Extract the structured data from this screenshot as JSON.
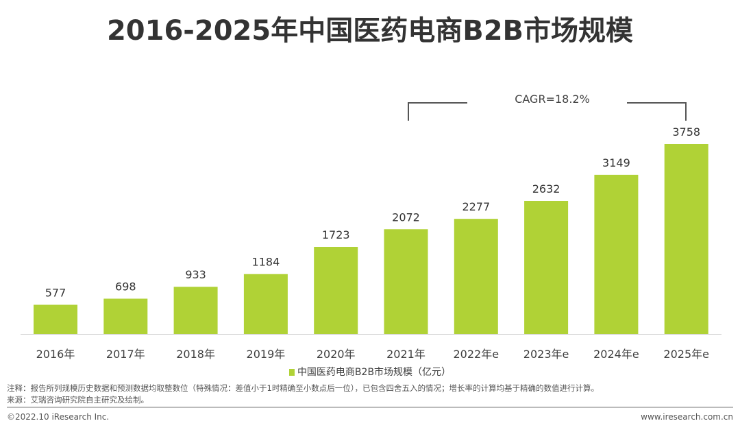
{
  "chart_data": {
    "type": "bar",
    "title": "2016-2025年中国医药电商B2B市场规模",
    "categories": [
      "2016年",
      "2017年",
      "2018年",
      "2019年",
      "2020年",
      "2021年",
      "2022年e",
      "2023年e",
      "2024年e",
      "2025年e"
    ],
    "series": [
      {
        "name": "中国医药电商B2B市场规模（亿元）",
        "values": [
          577,
          698,
          933,
          1184,
          1723,
          2072,
          2277,
          2632,
          3149,
          3758
        ]
      }
    ],
    "ylim": [
      0,
      3758
    ],
    "grid": false,
    "legend": "bottom",
    "color": "#b0d236",
    "annotation": "CAGR=18.2%"
  },
  "notes": {
    "note": "注释：报告所列规模历史数据和预测数据均取整数位（特殊情况：差值小于1时精确至小数点后一位），已包含四舍五入的情况；增长率的计算均基于精确的数值进行计算。",
    "source": "来源：艾瑞咨询研究院自主研究及绘制。"
  },
  "footer": {
    "copyright": "©2022.10 iResearch Inc.",
    "website": "www.iresearch.com.cn"
  }
}
